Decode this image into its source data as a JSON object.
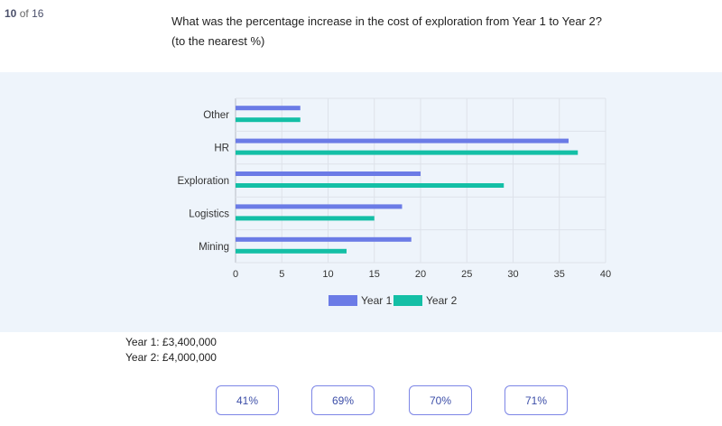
{
  "progress": {
    "current": "10",
    "of": "of",
    "total": "16"
  },
  "question": {
    "line1": "What was the percentage increase in the cost of exploration from Year 1 to Year 2?",
    "line2": "(to the nearest %)"
  },
  "chart_data": {
    "type": "bar",
    "orientation": "horizontal",
    "categories": [
      "Other",
      "HR",
      "Exploration",
      "Logistics",
      "Mining"
    ],
    "series": [
      {
        "name": "Year 1",
        "color": "#6b7be6",
        "values": [
          7,
          36,
          20,
          18,
          19
        ]
      },
      {
        "name": "Year 2",
        "color": "#14bfa6",
        "values": [
          7,
          37,
          29,
          15,
          12
        ]
      }
    ],
    "x_ticks": [
      "0",
      "5",
      "10",
      "15",
      "20",
      "25",
      "30",
      "35",
      "40"
    ],
    "xlim": [
      0,
      40
    ],
    "grid": true,
    "legend": "bottom"
  },
  "info": {
    "year1": "Year 1: £3,400,000",
    "year2": "Year 2: £4,000,000"
  },
  "answers": [
    "41%",
    "69%",
    "70%",
    "71%"
  ],
  "colors": {
    "answer_border": "#7d86e6",
    "answer_text": "#3c4ea8",
    "panel_bg": "#eef4fb"
  }
}
